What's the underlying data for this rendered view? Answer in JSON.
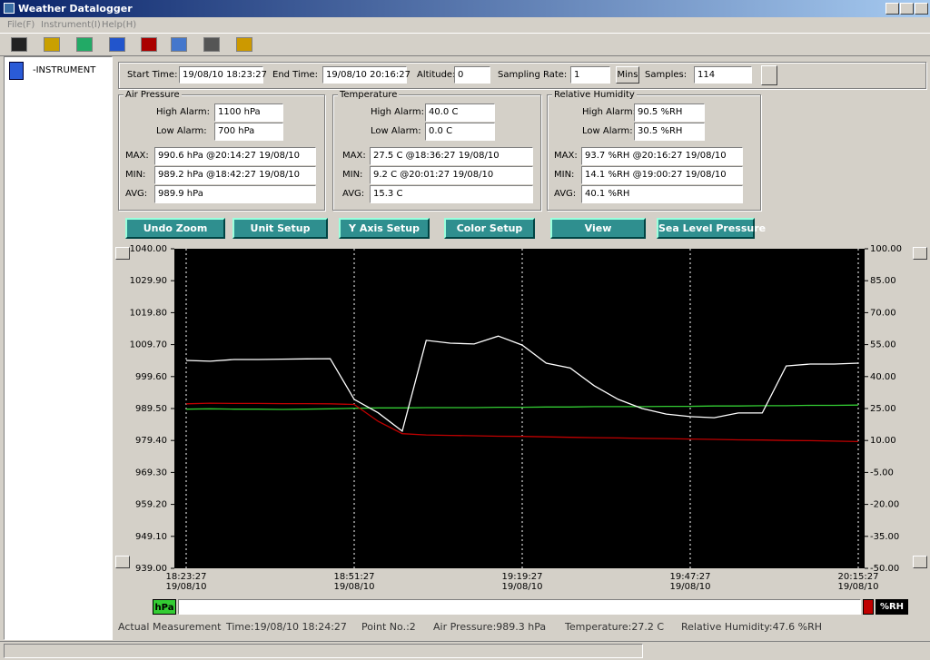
{
  "window": {
    "title": "Weather Datalogger"
  },
  "menu": [
    "File(F)",
    "Instrument(I)",
    "Help(H)"
  ],
  "tree": {
    "root": "-INSTRUMENT"
  },
  "info": [
    {
      "label": "Start Time:",
      "value": "19/08/10 18:23:27"
    },
    {
      "label": "End Time:",
      "value": "19/08/10 20:16:27"
    },
    {
      "label": "Altitude:",
      "value": "0"
    },
    {
      "label": "Sampling Rate:",
      "value": "1"
    },
    {
      "label": "Samples:",
      "value": "114"
    }
  ],
  "sampling_unit": "Mins",
  "groups": [
    {
      "title": "Air Pressure",
      "fields": [
        {
          "label": "High Alarm:",
          "value": "1100 hPa"
        },
        {
          "label": "Low Alarm:",
          "value": "700 hPa"
        },
        {
          "label": "MAX:",
          "value": "990.6 hPa @20:14:27 19/08/10"
        },
        {
          "label": "MIN:",
          "value": "989.2 hPa @18:42:27 19/08/10"
        },
        {
          "label": "AVG:",
          "value": "989.9 hPa"
        }
      ]
    },
    {
      "title": "Temperature",
      "fields": [
        {
          "label": "High Alarm:",
          "value": "40.0 C"
        },
        {
          "label": "Low Alarm:",
          "value": "0.0 C"
        },
        {
          "label": "MAX:",
          "value": "27.5 C @18:36:27 19/08/10"
        },
        {
          "label": "MIN:",
          "value": "9.2 C @20:01:27 19/08/10"
        },
        {
          "label": "AVG:",
          "value": "15.3 C"
        }
      ]
    },
    {
      "title": "Relative Humidity",
      "fields": [
        {
          "label": "High Alarm:",
          "value": "90.5 %RH"
        },
        {
          "label": "Low Alarm:",
          "value": "30.5 %RH"
        },
        {
          "label": "MAX:",
          "value": "93.7 %RH @20:16:27 19/08/10"
        },
        {
          "label": "MIN:",
          "value": "14.1 %RH @19:00:27 19/08/10"
        },
        {
          "label": "AVG:",
          "value": "40.1 %RH"
        }
      ]
    }
  ],
  "buttons": [
    "Undo Zoom",
    "Unit Setup",
    "Y Axis Setup",
    "Color Setup",
    "View",
    "Sea Level Pressure"
  ],
  "chart_data": {
    "type": "line",
    "background": "#000000",
    "grid": true,
    "categories": [
      "18:23:27\n19/08/10",
      null,
      null,
      null,
      null,
      null,
      null,
      "18:51:27\n19/08/10",
      null,
      null,
      null,
      null,
      null,
      null,
      "19:19:27\n19/08/10",
      null,
      null,
      null,
      null,
      null,
      null,
      "19:47:27\n19/08/10",
      null,
      null,
      null,
      null,
      null,
      null,
      "20:15:27\n19/08/10"
    ],
    "ylim": [
      939,
      1040
    ],
    "yticks": [
      {
        "value": 939,
        "label": "939.00"
      },
      {
        "value": 949.1,
        "label": "949.10"
      },
      {
        "value": 959.2,
        "label": "959.20"
      },
      {
        "value": 969.3,
        "label": "969.30"
      },
      {
        "value": 979.4,
        "label": "979.40"
      },
      {
        "value": 989.5,
        "label": "989.50"
      },
      {
        "value": 999.6,
        "label": "999.60"
      },
      {
        "value": 1009.7,
        "label": "1009.70"
      },
      {
        "value": 1019.8,
        "label": "1019.80"
      },
      {
        "value": 1029.9,
        "label": "1029.90"
      },
      {
        "value": 1040,
        "label": "1040.00"
      }
    ],
    "y2lim": [
      -50,
      100
    ],
    "y2ticks": [
      {
        "value": -50,
        "label": "-50.00"
      },
      {
        "value": -35,
        "label": "-35.00"
      },
      {
        "value": -20,
        "label": "-20.00"
      },
      {
        "value": -5,
        "label": "-5.00"
      },
      {
        "value": 10,
        "label": "10.00"
      },
      {
        "value": 25,
        "label": "25.00"
      },
      {
        "value": 40,
        "label": "40.00"
      },
      {
        "value": 55,
        "label": "55.00"
      },
      {
        "value": 70,
        "label": "70.00"
      },
      {
        "value": 85,
        "label": "85.00"
      },
      {
        "value": 100,
        "label": "100.00"
      }
    ],
    "series": [
      {
        "color": "#33cc33",
        "values": [
          989.3,
          989.4,
          989.3,
          989.3,
          989.2,
          989.3,
          989.4,
          989.6,
          989.7,
          989.7,
          989.8,
          989.8,
          989.8,
          989.9,
          989.9,
          990.0,
          990.0,
          990.1,
          990.1,
          990.1,
          990.2,
          990.2,
          990.3,
          990.3,
          990.4,
          990.4,
          990.5,
          990.5,
          990.6
        ]
      },
      {
        "color": "#c00000",
        "axis": "y2",
        "values": [
          27.2,
          27.5,
          27.4,
          27.4,
          27.3,
          27.3,
          27.2,
          26.9,
          19,
          13.2,
          12.6,
          12.4,
          12.2,
          12,
          11.9,
          11.7,
          11.5,
          11.3,
          11.2,
          11,
          10.9,
          10.7,
          10.5,
          10.3,
          10.2,
          10,
          9.9,
          9.7,
          9.5
        ]
      },
      {
        "color": "#ffffff",
        "axis": "y2",
        "values": [
          47.6,
          47.2,
          48,
          48,
          48.2,
          48.3,
          48.4,
          29.3,
          23,
          14.4,
          57,
          55.7,
          55.3,
          59,
          54.8,
          46.3,
          44,
          35.7,
          29.3,
          25,
          22.4,
          21.2,
          20.7,
          22.9,
          22.9,
          45,
          45.9,
          45.9,
          46.3
        ]
      }
    ]
  },
  "scale_units": {
    "left": "hPa",
    "right": "%RH"
  },
  "status": [
    "Actual Measurement",
    "Time:19/08/10 18:24:27",
    "Point No.:2",
    "Air Pressure:989.3 hPa",
    "Temperature:27.2 C",
    "Relative Humidity:47.6 %RH"
  ]
}
